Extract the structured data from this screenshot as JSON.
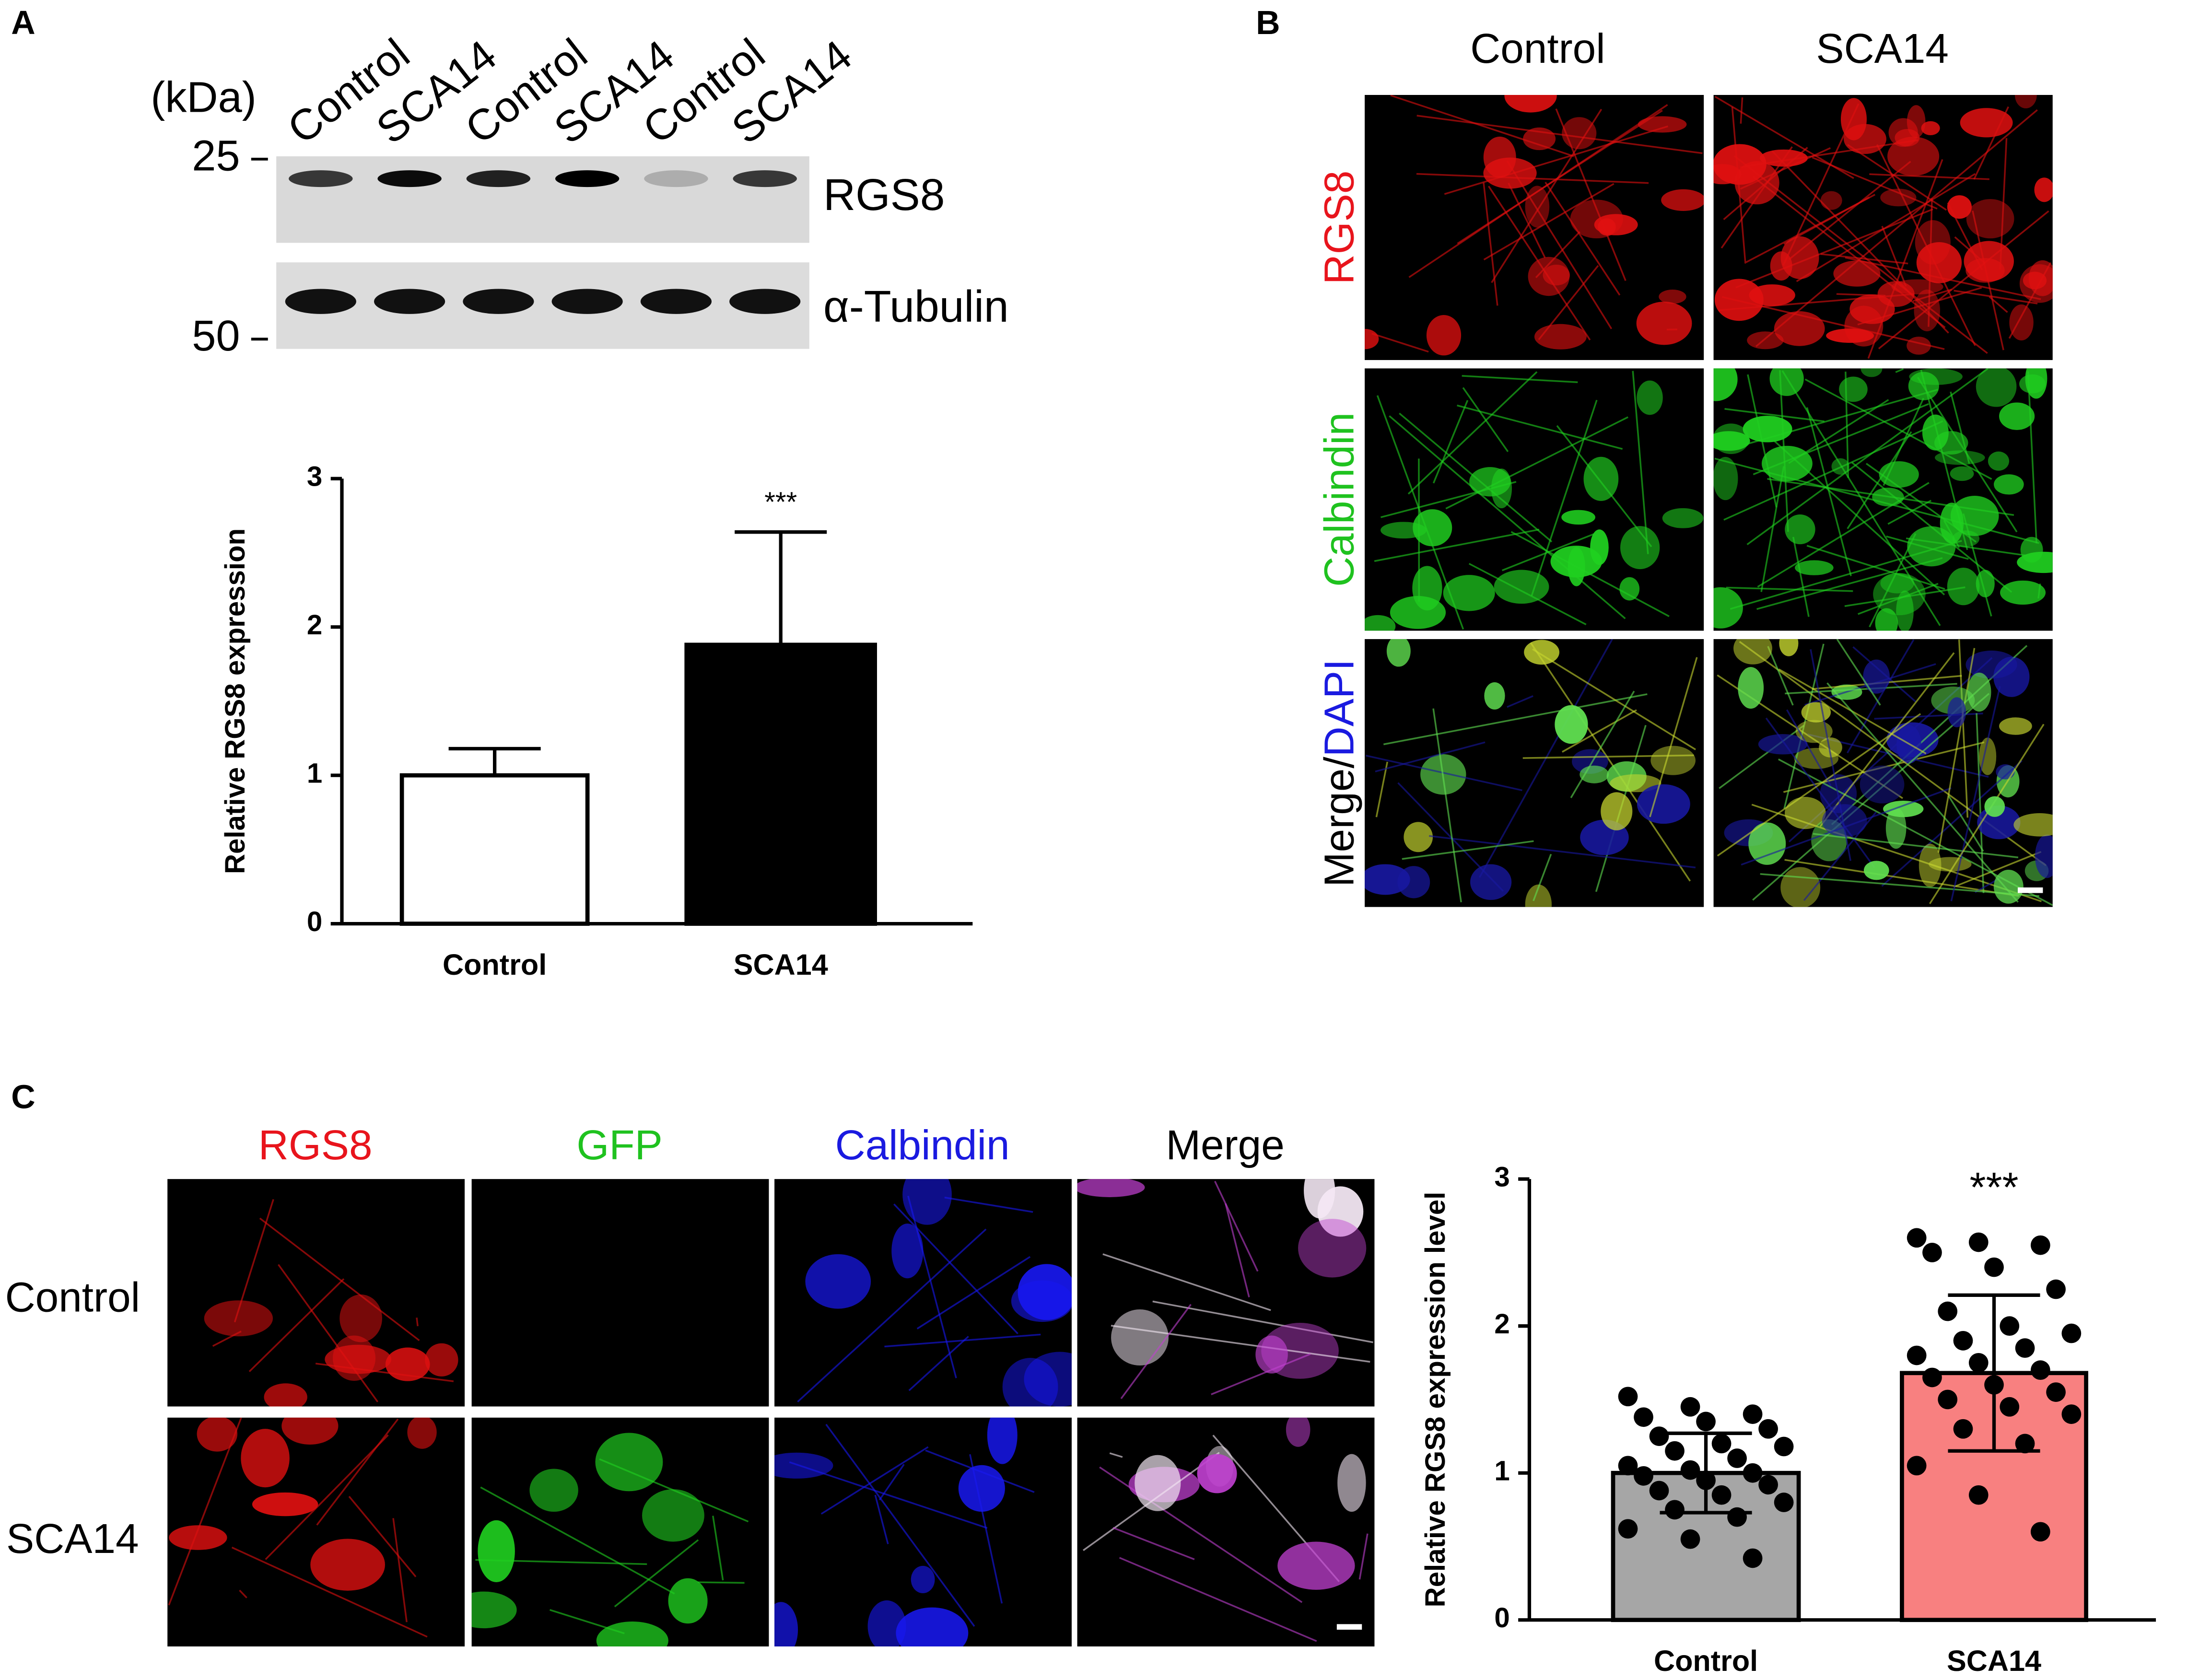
{
  "panel_labels": [
    "A",
    "B",
    "C"
  ],
  "blot": {
    "unit": "(kDa)",
    "lanes": [
      "Control",
      "SCA14",
      "Control",
      "SCA14",
      "Control",
      "SCA14"
    ],
    "markers": [
      "25",
      "50"
    ],
    "proteins": [
      "RGS8",
      "α-Tubulin"
    ]
  },
  "panel_b": {
    "columns": [
      "Control",
      "SCA14"
    ],
    "rows": [
      "RGS8",
      "Calbindin"
    ],
    "merge_label": [
      "Merge/",
      "DAPI"
    ]
  },
  "panel_c": {
    "columns": [
      "RGS8",
      "GFP",
      "Calbindin",
      "Merge"
    ],
    "rows": [
      "Control",
      "SCA14"
    ]
  },
  "chart_data": [
    {
      "type": "bar",
      "y_label": "Relative RGS8 expression",
      "categories": [
        "Control",
        "SCA14"
      ],
      "values": [
        1.0,
        1.88
      ],
      "errors": [
        0.18,
        0.76
      ],
      "colors": [
        "#ffffff",
        "#000000"
      ],
      "ylim": [
        0,
        3
      ],
      "yticks": [
        0,
        1,
        2,
        3
      ],
      "annotation": "***",
      "error_style": "upper"
    },
    {
      "type": "bar",
      "y_label": "Relative RGS8 expression level",
      "categories": [
        "Control",
        "SCA14"
      ],
      "values": [
        1.0,
        1.68
      ],
      "errors": [
        0.27,
        0.53
      ],
      "colors": [
        "#a6a6a6",
        "#f88080"
      ],
      "ylim": [
        0,
        3
      ],
      "yticks": [
        0,
        1,
        2,
        3
      ],
      "annotation": "***",
      "error_style": "both",
      "points": [
        [
          1.52,
          1.45,
          1.4,
          1.38,
          1.35,
          1.3,
          1.25,
          1.2,
          1.18,
          1.15,
          1.1,
          1.05,
          1.02,
          1.0,
          0.98,
          0.95,
          0.92,
          0.88,
          0.85,
          0.8,
          0.75,
          0.7,
          0.62,
          0.55,
          0.42
        ],
        [
          2.6,
          2.57,
          2.55,
          2.5,
          2.4,
          2.25,
          2.1,
          2.0,
          1.95,
          1.9,
          1.85,
          1.8,
          1.75,
          1.7,
          1.65,
          1.6,
          1.55,
          1.5,
          1.45,
          1.4,
          1.3,
          1.2,
          1.05,
          0.85,
          0.6
        ]
      ]
    }
  ]
}
